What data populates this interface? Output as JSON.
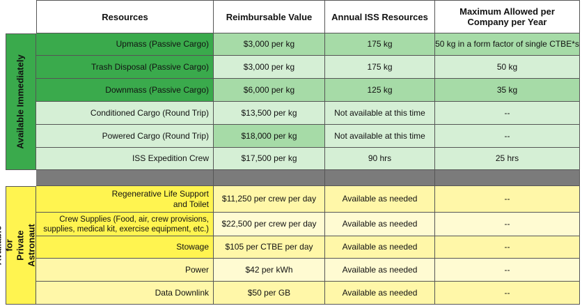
{
  "headers": {
    "resources": "Resources",
    "value": "Reimbursable Value",
    "annual": "Annual ISS Resources",
    "max": "Maximum Allowed per Company per Year"
  },
  "groups": {
    "immediate": "Available Immediately",
    "private": "Available for Private Astronaut Missions"
  },
  "immediate_rows": [
    {
      "resource": "Upmass (Passive Cargo)",
      "value": "$3,000 per kg",
      "annual": "175 kg",
      "max": "50 kg in a form factor of single CTBE*s"
    },
    {
      "resource": "Trash Disposal (Passive Cargo)",
      "value": "$3,000 per kg",
      "annual": "175 kg",
      "max": "50 kg"
    },
    {
      "resource": "Downmass (Passive Cargo)",
      "value": "$6,000 per kg",
      "annual": "125 kg",
      "max": "35 kg"
    },
    {
      "resource": "Conditioned Cargo (Round Trip)",
      "value": "$13,500 per kg",
      "annual": "Not available at this time",
      "max": "--"
    },
    {
      "resource": "Powered Cargo (Round Trip)",
      "value": "$18,000 per kg",
      "annual": "Not available at this time",
      "max": "--"
    },
    {
      "resource": "ISS Expedition Crew",
      "value": "$17,500 per kg",
      "annual": "90 hrs",
      "max": "25 hrs"
    }
  ],
  "private_rows": [
    {
      "resource": "Regenerative Life Support and Toilet",
      "value": "$11,250 per crew per day",
      "annual": "Available as needed",
      "max": "--"
    },
    {
      "resource": "Crew Supplies (Food, air, crew provisions, supplies, medical kit, exercise equipment, etc.)",
      "value": "$22,500 per crew per day",
      "annual": "Available as needed",
      "max": "--"
    },
    {
      "resource": "Stowage",
      "value": "$105 per CTBE per day",
      "annual": "Available as needed",
      "max": "--"
    },
    {
      "resource": "Power",
      "value": "$42 per kWh",
      "annual": "Available as needed",
      "max": "--"
    },
    {
      "resource": "Data Downlink",
      "value": "$50 per GB",
      "annual": "Available as needed",
      "max": "--"
    }
  ],
  "colors": {
    "green_dark": "#3aaa4c",
    "green_mid": "#a6dba7",
    "green_light": "#d5efd5",
    "yellow_dark": "#fff450",
    "yellow_mid": "#fff7a8",
    "yellow_light": "#fffbd2",
    "separator": "#7b7b7b"
  }
}
